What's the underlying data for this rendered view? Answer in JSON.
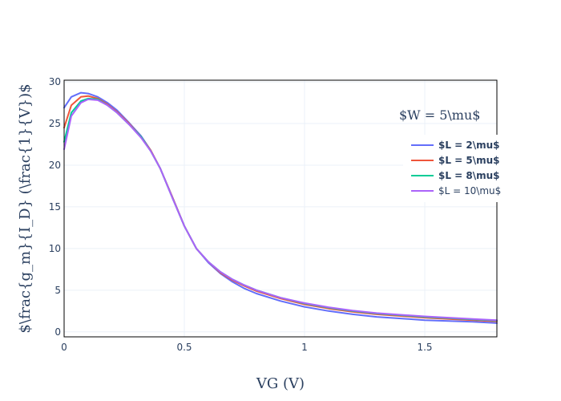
{
  "chart_data": {
    "type": "line",
    "xlabel": "VG (V)",
    "ylabel": "$\\frac{g_m}{I_D} (\\frac{1}{V})$",
    "xlim": [
      0,
      1.8
    ],
    "ylim": [
      -0.6,
      30.2
    ],
    "x_ticks": [
      0,
      0.5,
      1,
      1.5
    ],
    "x_tick_labels": [
      "0",
      "0.5",
      "1",
      "1.5"
    ],
    "y_ticks": [
      0,
      5,
      10,
      15,
      20,
      25,
      30
    ],
    "y_tick_labels": [
      "0",
      "5",
      "10",
      "15",
      "20",
      "25",
      "30"
    ],
    "grid": true,
    "legend_position": "right",
    "annotation": "$W = 5\\mu$",
    "series": [
      {
        "name": "$L = 2\\mu$",
        "color": "#636efa",
        "bold": true,
        "x": [
          0,
          0.03,
          0.07,
          0.1,
          0.14,
          0.18,
          0.22,
          0.27,
          0.32,
          0.36,
          0.4,
          0.45,
          0.5,
          0.55,
          0.6,
          0.65,
          0.7,
          0.75,
          0.8,
          0.9,
          1.0,
          1.1,
          1.2,
          1.3,
          1.4,
          1.5,
          1.6,
          1.7,
          1.8
        ],
        "y": [
          26.9,
          28.2,
          28.7,
          28.6,
          28.2,
          27.5,
          26.6,
          25.1,
          23.5,
          21.8,
          19.6,
          16.2,
          12.7,
          10.0,
          8.3,
          7.0,
          6.0,
          5.2,
          4.6,
          3.7,
          3.0,
          2.5,
          2.1,
          1.8,
          1.6,
          1.4,
          1.3,
          1.2,
          1.05
        ]
      },
      {
        "name": "$L = 5\\mu$",
        "color": "#ef553b",
        "bold": true,
        "x": [
          0,
          0.03,
          0.07,
          0.1,
          0.14,
          0.18,
          0.22,
          0.27,
          0.32,
          0.36,
          0.4,
          0.45,
          0.5,
          0.55,
          0.6,
          0.65,
          0.7,
          0.75,
          0.8,
          0.9,
          1.0,
          1.1,
          1.2,
          1.3,
          1.4,
          1.5,
          1.6,
          1.7,
          1.8
        ],
        "y": [
          24.5,
          27.2,
          28.2,
          28.3,
          28.0,
          27.3,
          26.4,
          25.0,
          23.4,
          21.8,
          19.6,
          16.2,
          12.7,
          10.0,
          8.4,
          7.1,
          6.2,
          5.5,
          4.9,
          4.0,
          3.3,
          2.8,
          2.4,
          2.1,
          1.9,
          1.7,
          1.55,
          1.4,
          1.25
        ]
      },
      {
        "name": "$L = 8\\mu$",
        "color": "#00cc96",
        "bold": true,
        "x": [
          0,
          0.03,
          0.07,
          0.1,
          0.14,
          0.18,
          0.22,
          0.27,
          0.32,
          0.36,
          0.4,
          0.45,
          0.5,
          0.55,
          0.6,
          0.65,
          0.7,
          0.75,
          0.8,
          0.9,
          1.0,
          1.1,
          1.2,
          1.3,
          1.4,
          1.5,
          1.6,
          1.7,
          1.8
        ],
        "y": [
          22.8,
          26.3,
          27.7,
          28.0,
          27.9,
          27.2,
          26.3,
          24.9,
          23.4,
          21.7,
          19.6,
          16.1,
          12.7,
          10.0,
          8.4,
          7.2,
          6.3,
          5.6,
          5.0,
          4.1,
          3.4,
          2.9,
          2.5,
          2.2,
          2.0,
          1.8,
          1.65,
          1.5,
          1.35
        ]
      },
      {
        "name": "$L = 10\\mu$",
        "color": "#ab63fa",
        "bold": false,
        "x": [
          0,
          0.03,
          0.07,
          0.1,
          0.14,
          0.18,
          0.22,
          0.27,
          0.32,
          0.36,
          0.4,
          0.45,
          0.5,
          0.55,
          0.6,
          0.65,
          0.7,
          0.75,
          0.8,
          0.9,
          1.0,
          1.1,
          1.2,
          1.3,
          1.4,
          1.5,
          1.6,
          1.7,
          1.8
        ],
        "y": [
          21.9,
          25.9,
          27.5,
          27.9,
          27.8,
          27.2,
          26.3,
          24.9,
          23.3,
          21.7,
          19.6,
          16.1,
          12.7,
          10.0,
          8.4,
          7.2,
          6.3,
          5.6,
          5.0,
          4.1,
          3.45,
          2.95,
          2.55,
          2.25,
          2.05,
          1.85,
          1.7,
          1.55,
          1.4
        ]
      }
    ]
  }
}
